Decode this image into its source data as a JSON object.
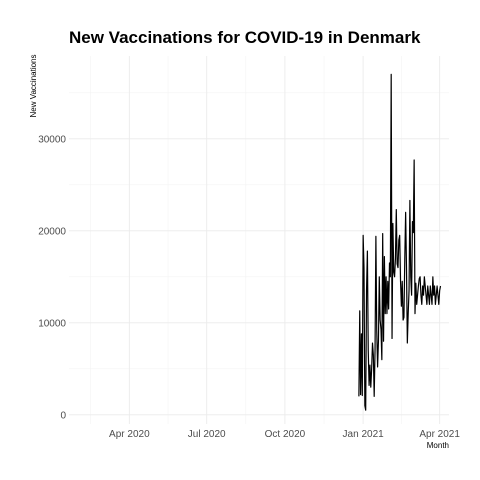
{
  "chart_data": {
    "type": "line",
    "title": "New Vaccinations for COVID-19 in Denmark",
    "xlabel": "Month",
    "ylabel": "New Vaccinations",
    "xlim": [
      "2020-01-21",
      "2021-04-12"
    ],
    "ylim": [
      -1000,
      39000
    ],
    "x_ticks": [
      {
        "value": "2020-04-01",
        "label": "Apr 2020"
      },
      {
        "value": "2020-07-01",
        "label": "Jul 2020"
      },
      {
        "value": "2020-10-01",
        "label": "Oct 2020"
      },
      {
        "value": "2021-01-01",
        "label": "Jan 2021"
      },
      {
        "value": "2021-04-01",
        "label": "Apr 2021"
      }
    ],
    "y_ticks": [
      0,
      10000,
      20000,
      30000
    ],
    "grid": true,
    "series": [
      {
        "color": "#000000",
        "x": [
          "2020-12-27",
          "2020-12-28",
          "2020-12-29",
          "2020-12-30",
          "2020-12-31",
          "2021-01-01",
          "2021-01-02",
          "2021-01-03",
          "2021-01-04",
          "2021-01-05",
          "2021-01-06",
          "2021-01-07",
          "2021-01-08",
          "2021-01-09",
          "2021-01-10",
          "2021-01-11",
          "2021-01-12",
          "2021-01-13",
          "2021-01-14",
          "2021-01-15",
          "2021-01-16",
          "2021-01-17",
          "2021-01-18",
          "2021-01-19",
          "2021-01-20",
          "2021-01-21",
          "2021-01-22",
          "2021-01-23",
          "2021-01-24",
          "2021-01-25",
          "2021-01-26",
          "2021-01-27",
          "2021-01-28",
          "2021-01-29",
          "2021-01-30",
          "2021-01-31",
          "2021-02-01",
          "2021-02-02",
          "2021-02-03",
          "2021-02-04",
          "2021-02-05",
          "2021-02-06",
          "2021-02-07",
          "2021-02-08",
          "2021-02-09",
          "2021-02-10",
          "2021-02-11",
          "2021-02-12",
          "2021-02-13",
          "2021-02-14",
          "2021-02-15",
          "2021-02-16",
          "2021-02-17",
          "2021-02-18",
          "2021-02-19",
          "2021-02-20",
          "2021-02-21",
          "2021-02-22",
          "2021-02-23",
          "2021-02-24",
          "2021-02-25",
          "2021-02-26",
          "2021-02-27",
          "2021-02-28",
          "2021-03-01",
          "2021-03-02",
          "2021-03-03",
          "2021-03-04",
          "2021-03-05",
          "2021-03-06",
          "2021-03-07",
          "2021-03-08",
          "2021-03-09",
          "2021-03-10",
          "2021-03-11",
          "2021-03-12",
          "2021-03-13",
          "2021-03-14",
          "2021-03-15",
          "2021-03-16",
          "2021-03-17",
          "2021-03-18",
          "2021-03-19",
          "2021-03-20",
          "2021-03-21",
          "2021-03-22",
          "2021-03-23",
          "2021-03-24",
          "2021-03-25",
          "2021-03-26",
          "2021-03-27",
          "2021-03-28",
          "2021-03-29",
          "2021-03-30",
          "2021-03-31",
          "2021-04-01",
          "2021-04-02"
        ],
        "values": [
          2000,
          11300,
          2200,
          8800,
          2100,
          19500,
          16000,
          1000,
          500,
          13500,
          17800,
          7000,
          3200,
          5400,
          3000,
          5000,
          7800,
          6500,
          2000,
          7000,
          19400,
          9200,
          5200,
          8000,
          15000,
          10300,
          9300,
          6000,
          19700,
          8000,
          17200,
          11000,
          15000,
          11000,
          14500,
          11500,
          16500,
          15000,
          37000,
          8300,
          20800,
          15500,
          15000,
          17000,
          22300,
          16400,
          16000,
          19000,
          19500,
          14500,
          11800,
          14500,
          10300,
          10600,
          17000,
          22000,
          16000,
          7800,
          11000,
          13500,
          23300,
          15000,
          13000,
          21000,
          19800,
          27700,
          11000,
          14300,
          12000,
          13000,
          14000,
          14800,
          15000,
          13000,
          12000,
          14000,
          13000,
          15000,
          14000,
          13000,
          12000,
          14000,
          13000,
          12000,
          14000,
          13000,
          12000,
          15000,
          13000,
          14000,
          12000,
          13000,
          14000,
          13000,
          12000,
          13500,
          14000
        ]
      }
    ]
  }
}
